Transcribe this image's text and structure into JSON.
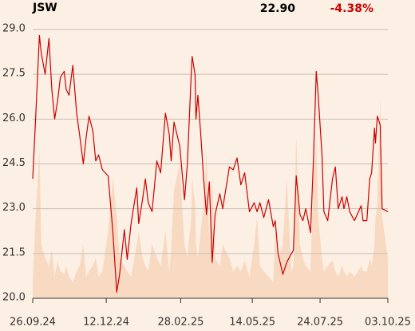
{
  "chart_data": {
    "type": "line",
    "title": "JSW",
    "last_price": "22.90",
    "change": "-4.38%",
    "x": [
      0,
      3,
      7,
      9,
      13,
      17,
      20,
      23,
      26,
      29,
      33,
      35,
      38,
      42,
      46,
      49,
      53,
      56,
      59,
      63,
      66,
      69,
      73,
      79,
      84,
      88,
      91,
      96,
      99,
      103,
      109,
      111,
      115,
      118,
      121,
      125,
      130,
      134,
      139,
      143,
      145,
      148,
      154,
      159,
      162,
      166,
      167,
      170,
      171,
      173,
      176,
      179,
      182,
      185,
      188,
      191,
      196,
      199,
      206,
      210,
      214,
      218,
      222,
      227,
      232,
      235,
      238,
      242,
      247,
      252,
      254,
      257,
      262,
      266,
      271,
      273,
      276,
      280,
      283,
      286,
      291,
      294,
      297,
      299,
      303,
      305,
      309,
      314,
      317,
      320,
      324,
      326,
      329,
      332,
      337,
      344,
      346,
      350,
      353,
      355,
      358,
      359,
      361,
      364,
      366,
      372
    ],
    "series": [
      {
        "color": "#cc0000",
        "values": [
          24.0,
          26.0,
          28.8,
          28.2,
          27.5,
          28.7,
          27.0,
          26.0,
          26.6,
          27.4,
          27.6,
          27.0,
          26.8,
          27.8,
          26.2,
          25.5,
          24.5,
          25.4,
          26.1,
          25.6,
          24.6,
          24.8,
          24.3,
          24.1,
          22.2,
          20.2,
          20.8,
          22.3,
          21.3,
          22.5,
          23.7,
          22.5,
          23.3,
          24.0,
          23.2,
          22.9,
          24.6,
          24.2,
          26.2,
          25.5,
          24.6,
          25.9,
          25.1,
          23.3,
          24.5,
          27.5,
          28.1,
          27.5,
          26.0,
          26.8,
          25.5,
          24.0,
          22.8,
          23.9,
          21.2,
          22.8,
          23.5,
          23.0,
          24.4,
          24.3,
          24.7,
          23.8,
          24.2,
          22.9,
          23.2,
          22.9,
          23.2,
          22.7,
          23.3,
          22.4,
          22.6,
          21.5,
          20.8,
          21.2,
          21.5,
          21.6,
          24.1,
          22.8,
          22.6,
          23.0,
          22.2,
          24.6,
          27.6,
          26.8,
          24.8,
          22.9,
          22.6,
          24.0,
          24.4,
          23.0,
          23.4,
          23.0,
          23.4,
          22.9,
          22.6,
          23.1,
          22.6,
          22.6,
          24.0,
          24.2,
          25.7,
          25.2,
          26.1,
          25.8,
          23.0,
          22.9
        ]
      },
      {
        "color": "#f8d9c2",
        "axis": "y2",
        "values": [
          5,
          30,
          55,
          20,
          15,
          12,
          18,
          8,
          14,
          10,
          9,
          12,
          8,
          6,
          10,
          12,
          20,
          8,
          10,
          12,
          15,
          8,
          10,
          25,
          45,
          30,
          15,
          12,
          10,
          8,
          20,
          25,
          15,
          12,
          10,
          20,
          15,
          12,
          25,
          10,
          18,
          40,
          50,
          20,
          15,
          30,
          45,
          35,
          20,
          15,
          25,
          35,
          55,
          20,
          45,
          15,
          12,
          20,
          15,
          10,
          12,
          10,
          14,
          8,
          20,
          30,
          12,
          10,
          8,
          6,
          25,
          15,
          20,
          45,
          10,
          12,
          60,
          20,
          15,
          12,
          10,
          45,
          60,
          30,
          15,
          10,
          12,
          14,
          10,
          8,
          12,
          10,
          8,
          10,
          8,
          12,
          10,
          10,
          15,
          12,
          20,
          30,
          35,
          75,
          30,
          15
        ]
      }
    ],
    "xlim": [
      0,
      372
    ],
    "xticks": [
      {
        "value": 0,
        "label": "26.09.24"
      },
      {
        "value": 77,
        "label": "12.12.24"
      },
      {
        "value": 155,
        "label": "28.02.25"
      },
      {
        "value": 230,
        "label": "14.05.25"
      },
      {
        "value": 301,
        "label": "24.07.25"
      },
      {
        "value": 372,
        "label": "03.10.25"
      }
    ],
    "ylim": [
      20,
      29
    ],
    "yticks": [
      {
        "value": 20,
        "label": "20.0"
      },
      21.5,
      {
        "value": 23,
        "label": "23.0"
      },
      24.5,
      {
        "value": 26,
        "label": "26.0"
      },
      27.5,
      {
        "value": 29,
        "label": "29.0"
      }
    ],
    "y2lim": [
      0,
      100
    ],
    "grid": true
  }
}
